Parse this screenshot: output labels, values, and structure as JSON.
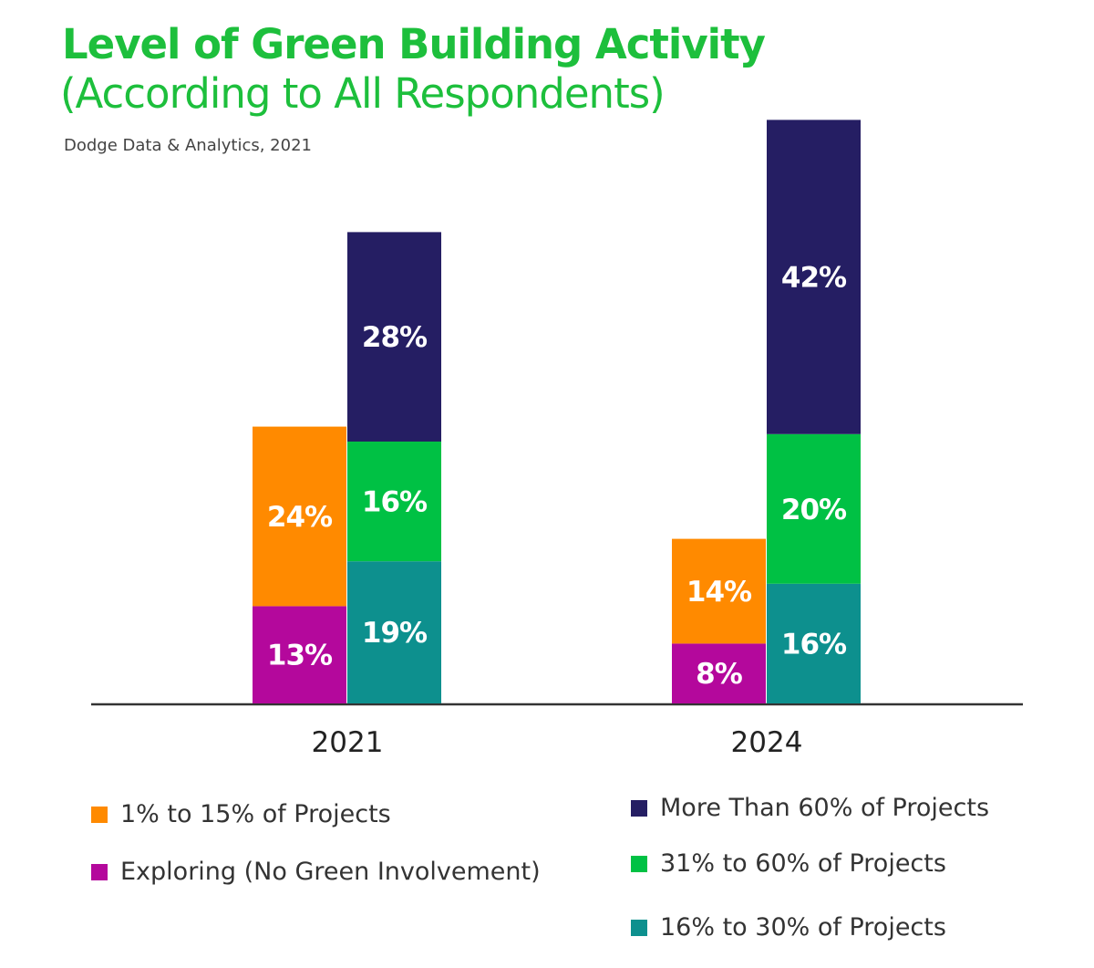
{
  "chart_data": {
    "type": "bar",
    "stacked": true,
    "title": "Level of Green Building Activity",
    "subtitle": "(According to All Respondents)",
    "source": "Dodge Data & Analytics, 2021",
    "categories": [
      "2021",
      "2024"
    ],
    "unit": "%",
    "grid": false,
    "legend_placement": "bottom",
    "groups": [
      {
        "category": "2021",
        "stacks": [
          [
            {
              "series": "Exploring (No Green Involvement)",
              "value": 13,
              "label": "13%"
            },
            {
              "series": "1% to 15% of Projects",
              "value": 24,
              "label": "24%"
            }
          ],
          [
            {
              "series": "16% to 30% of Projects",
              "value": 19,
              "label": "19%"
            },
            {
              "series": "31% to 60% of Projects",
              "value": 16,
              "label": "16%"
            },
            {
              "series": "More Than 60% of Projects",
              "value": 28,
              "label": "28%"
            }
          ]
        ]
      },
      {
        "category": "2024",
        "stacks": [
          [
            {
              "series": "Exploring (No Green Involvement)",
              "value": 8,
              "label": "8%"
            },
            {
              "series": "1% to 15% of Projects",
              "value": 14,
              "label": "14%"
            }
          ],
          [
            {
              "series": "16% to 30% of Projects",
              "value": 16,
              "label": "16%"
            },
            {
              "series": "31% to 60% of Projects",
              "value": 20,
              "label": "20%"
            },
            {
              "series": "More Than 60% of Projects",
              "value": 42,
              "label": "42%"
            }
          ]
        ]
      }
    ],
    "series": [
      {
        "name": "1% to 15% of Projects",
        "color": "#FF8A00"
      },
      {
        "name": "Exploring (No Green Involvement)",
        "color": "#B4089C"
      },
      {
        "name": "More Than 60% of Projects",
        "color": "#251E63"
      },
      {
        "name": "31% to 60% of Projects",
        "color": "#00C144"
      },
      {
        "name": "16% to 30% of Projects",
        "color": "#0D908E"
      }
    ]
  }
}
